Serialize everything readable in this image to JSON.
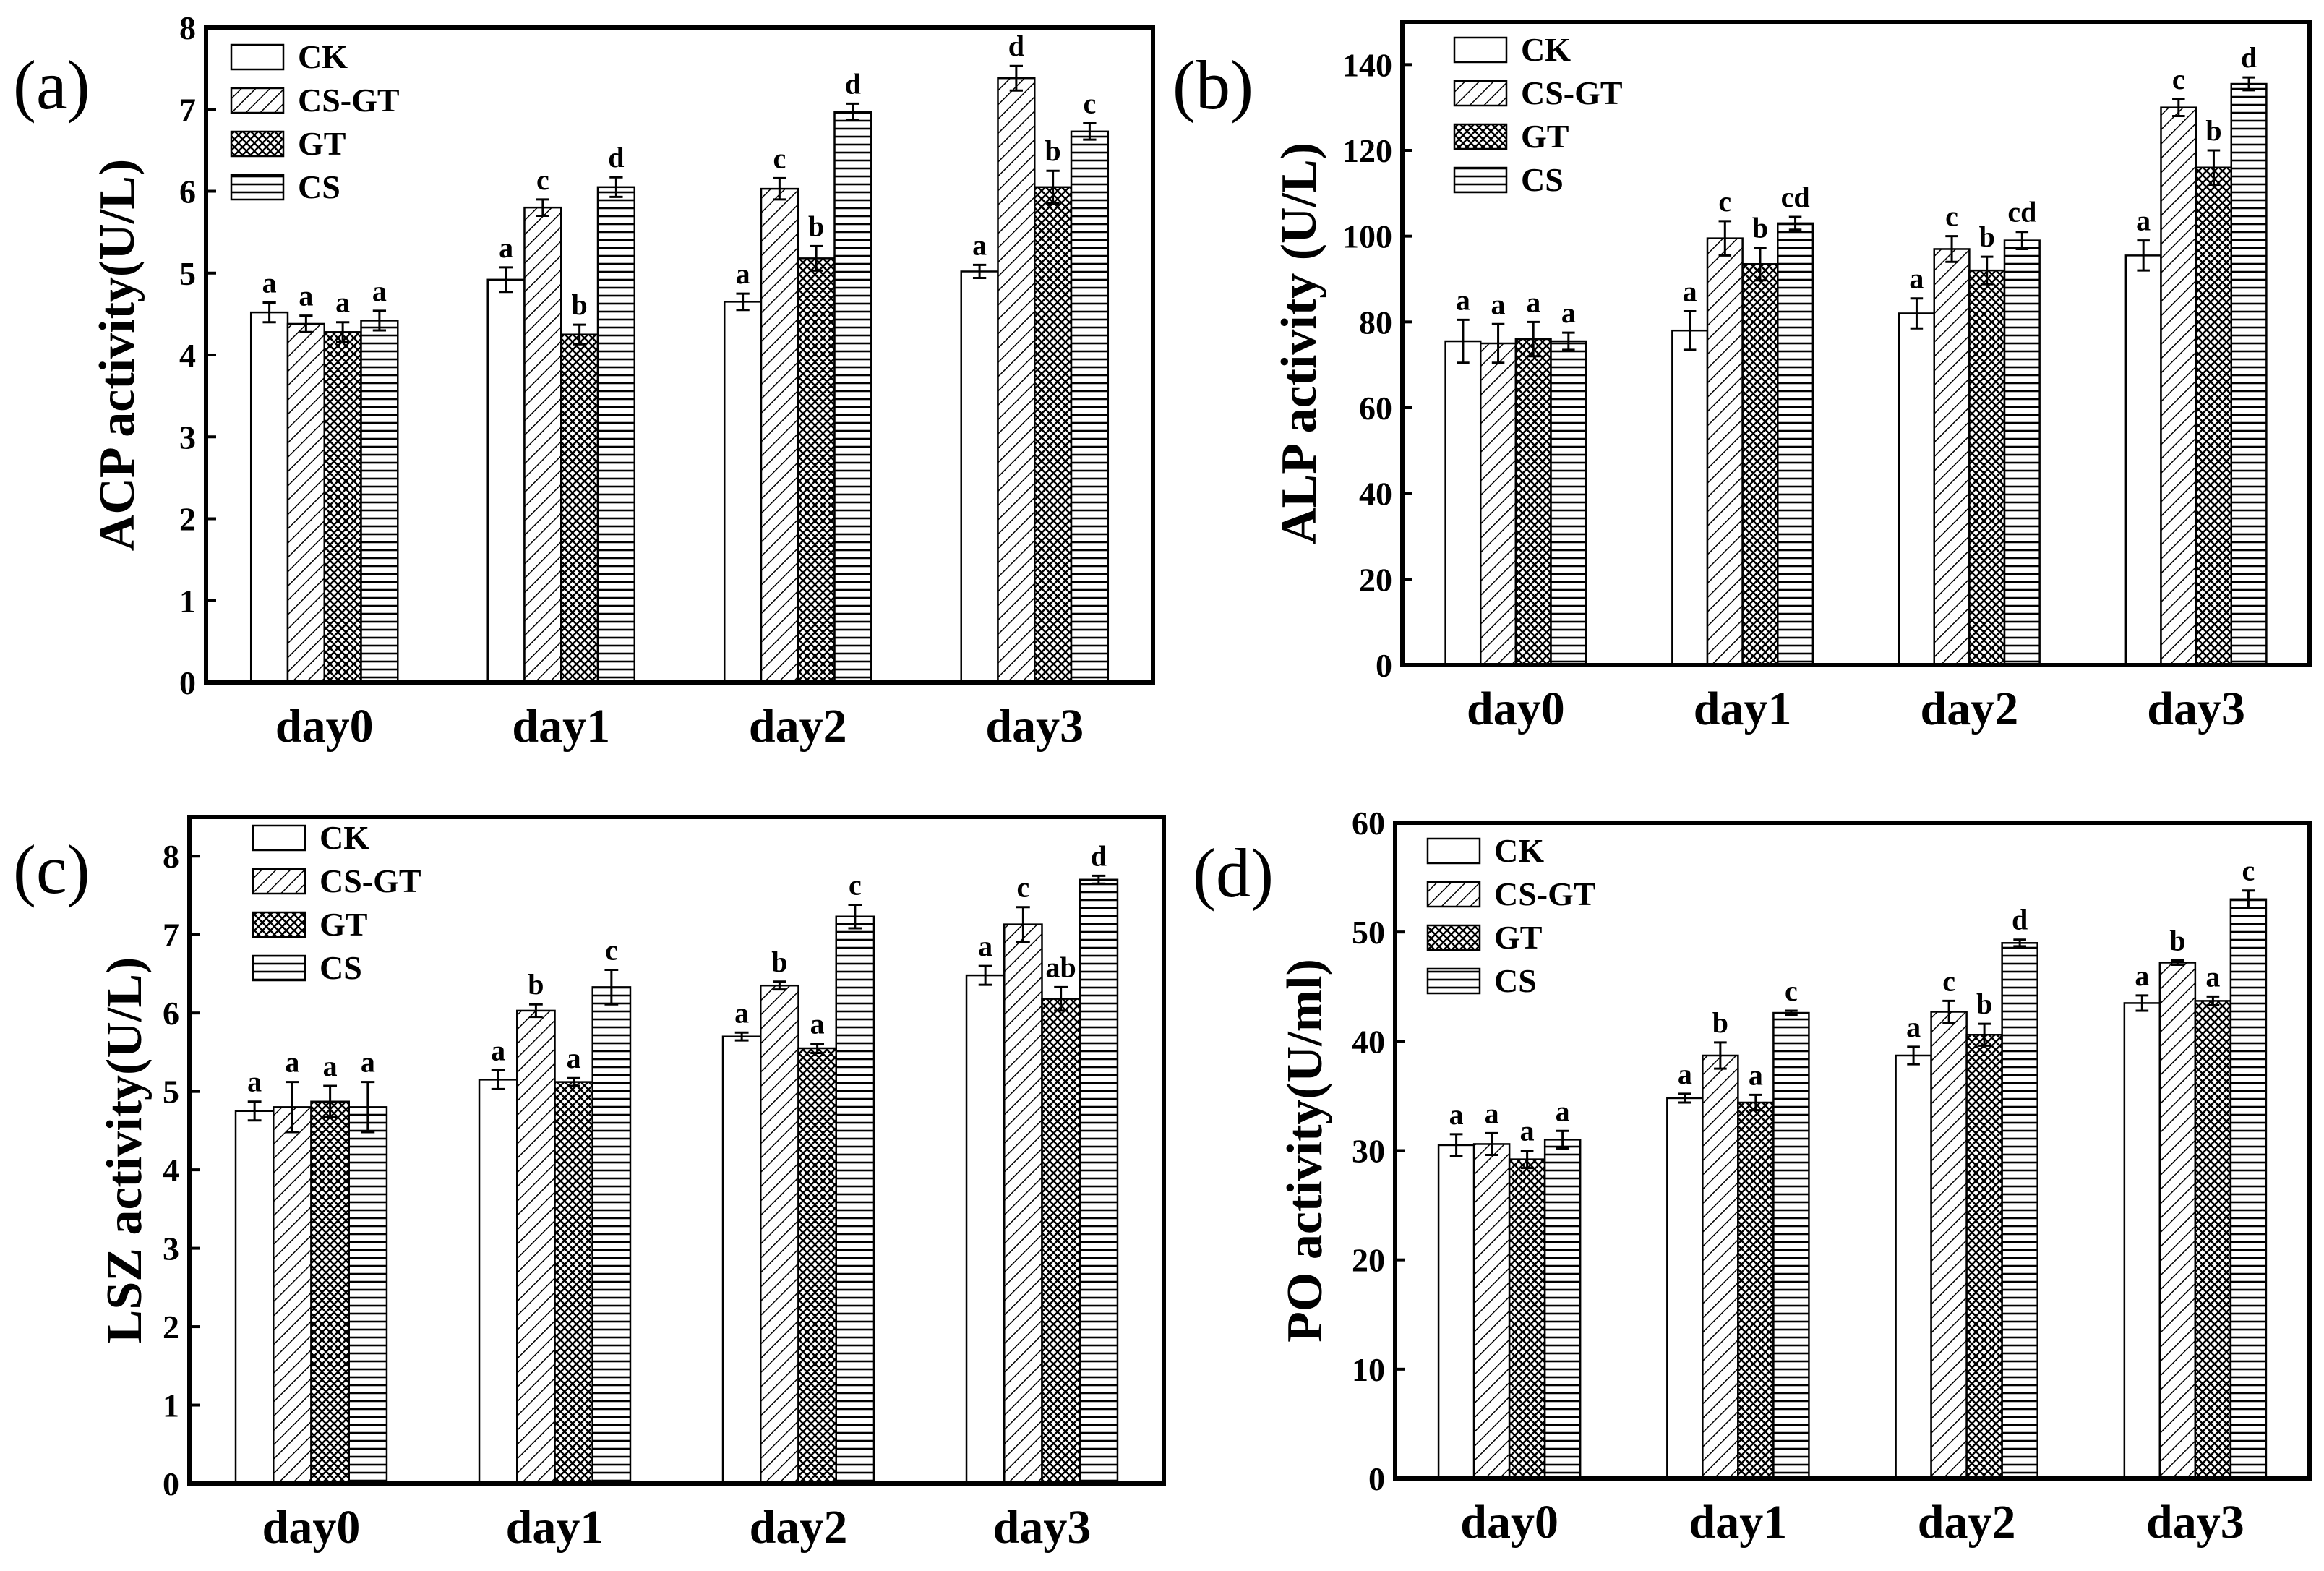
{
  "chart_data": [
    {
      "type": "bar",
      "panel_label": "(a)",
      "ylabel": "ACP activity(U/L)",
      "ylim": [
        0,
        8
      ],
      "yticks": [
        0,
        1,
        2,
        3,
        4,
        5,
        6,
        7,
        8
      ],
      "categories": [
        "day0",
        "day1",
        "day2",
        "day3"
      ],
      "legend_position": "top-left",
      "series": [
        {
          "name": "CK",
          "values": [
            4.52,
            4.92,
            4.65,
            5.02
          ],
          "errors": [
            0.12,
            0.15,
            0.1,
            0.08
          ],
          "sig": [
            "a",
            "a",
            "a",
            "a"
          ]
        },
        {
          "name": "CS-GT",
          "values": [
            4.38,
            5.8,
            6.03,
            7.38
          ],
          "errors": [
            0.1,
            0.1,
            0.13,
            0.15
          ],
          "sig": [
            "a",
            "c",
            "c",
            "d"
          ]
        },
        {
          "name": "GT",
          "values": [
            4.28,
            4.25,
            5.18,
            6.05
          ],
          "errors": [
            0.12,
            0.12,
            0.15,
            0.2
          ],
          "sig": [
            "a",
            "b",
            "b",
            "b"
          ]
        },
        {
          "name": "CS",
          "values": [
            4.42,
            6.05,
            6.97,
            6.73
          ],
          "errors": [
            0.12,
            0.12,
            0.1,
            0.1
          ],
          "sig": [
            "a",
            "d",
            "d",
            "c"
          ]
        }
      ]
    },
    {
      "type": "bar",
      "panel_label": "(b)",
      "ylabel": "ALP activity (U/L)",
      "ylim": [
        0,
        150
      ],
      "yticks": [
        0,
        20,
        40,
        60,
        80,
        100,
        120,
        140
      ],
      "categories": [
        "day0",
        "day1",
        "day2",
        "day3"
      ],
      "legend_position": "top-left",
      "series": [
        {
          "name": "CK",
          "values": [
            75.5,
            78,
            82,
            95.5
          ],
          "errors": [
            5.0,
            4.5,
            3.5,
            3.5
          ],
          "sig": [
            "a",
            "a",
            "a",
            "a"
          ]
        },
        {
          "name": "CS-GT",
          "values": [
            75,
            99.5,
            97,
            130
          ],
          "errors": [
            4.5,
            4.0,
            3.0,
            2.0
          ],
          "sig": [
            "a",
            "c",
            "c",
            "c"
          ]
        },
        {
          "name": "GT",
          "values": [
            76,
            93.5,
            92,
            116
          ],
          "errors": [
            4.0,
            3.8,
            3.2,
            4.0
          ],
          "sig": [
            "a",
            "b",
            "b",
            "b"
          ]
        },
        {
          "name": "CS",
          "values": [
            75.5,
            103,
            99,
            135.5
          ],
          "errors": [
            2.0,
            1.5,
            2.0,
            1.5
          ],
          "sig": [
            "a",
            "cd",
            "cd",
            "d"
          ]
        }
      ]
    },
    {
      "type": "bar",
      "panel_label": "(c)",
      "ylabel": "LSZ activity(U/L)",
      "ylim": [
        0,
        8.5
      ],
      "yticks": [
        0,
        1,
        2,
        3,
        4,
        5,
        6,
        7,
        8
      ],
      "categories": [
        "day0",
        "day1",
        "day2",
        "day3"
      ],
      "legend_position": "top-left",
      "series": [
        {
          "name": "CK",
          "values": [
            4.75,
            5.15,
            5.7,
            6.48
          ],
          "errors": [
            0.12,
            0.12,
            0.05,
            0.12
          ],
          "sig": [
            "a",
            "a",
            "a",
            "a"
          ]
        },
        {
          "name": "CS-GT",
          "values": [
            4.8,
            6.03,
            6.35,
            7.13
          ],
          "errors": [
            0.32,
            0.08,
            0.05,
            0.22
          ],
          "sig": [
            "a",
            "b",
            "b",
            "c"
          ]
        },
        {
          "name": "GT",
          "values": [
            4.87,
            5.12,
            5.55,
            6.18
          ],
          "errors": [
            0.2,
            0.05,
            0.06,
            0.15
          ],
          "sig": [
            "a",
            "a",
            "a",
            "ab"
          ]
        },
        {
          "name": "CS",
          "values": [
            4.8,
            6.33,
            7.23,
            7.7
          ],
          "errors": [
            0.32,
            0.22,
            0.15,
            0.05
          ],
          "sig": [
            "a",
            "c",
            "c",
            "d"
          ]
        }
      ]
    },
    {
      "type": "bar",
      "panel_label": "(d)",
      "ylabel": "PO activity(U/ml)",
      "ylim": [
        0,
        60
      ],
      "yticks": [
        0,
        10,
        20,
        30,
        40,
        50,
        60
      ],
      "categories": [
        "day0",
        "day1",
        "day2",
        "day3"
      ],
      "legend_position": "top-left",
      "series": [
        {
          "name": "CK",
          "values": [
            30.5,
            34.8,
            38.7,
            43.5
          ],
          "errors": [
            1.0,
            0.4,
            0.8,
            0.7
          ],
          "sig": [
            "a",
            "a",
            "a",
            "a"
          ]
        },
        {
          "name": "CS-GT",
          "values": [
            30.6,
            38.7,
            42.7,
            47.2
          ],
          "errors": [
            1.0,
            1.2,
            1.0,
            0.2
          ],
          "sig": [
            "a",
            "b",
            "c",
            "b"
          ]
        },
        {
          "name": "GT",
          "values": [
            29.2,
            34.4,
            40.6,
            43.7
          ],
          "errors": [
            0.8,
            0.7,
            1.0,
            0.4
          ],
          "sig": [
            "a",
            "a",
            "b",
            "a"
          ]
        },
        {
          "name": "CS",
          "values": [
            31.0,
            42.6,
            49.0,
            53.0
          ],
          "errors": [
            0.8,
            0.2,
            0.3,
            0.8
          ],
          "sig": [
            "a",
            "c",
            "d",
            "c"
          ]
        }
      ]
    }
  ]
}
